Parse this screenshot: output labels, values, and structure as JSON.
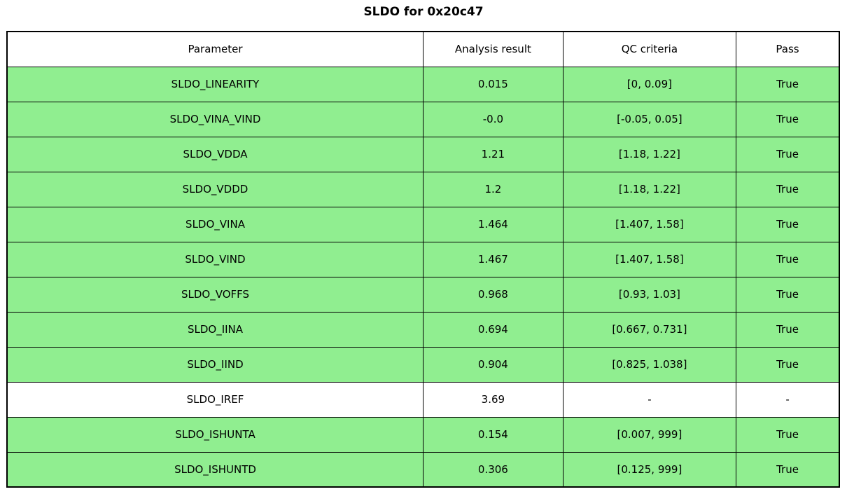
{
  "chart_data": {
    "type": "table",
    "title": "SLDO for 0x20c47",
    "columns": [
      "Parameter",
      "Analysis result",
      "QC criteria",
      "Pass"
    ],
    "rows": [
      {
        "parameter": "SLDO_LINEARITY",
        "result": "0.015",
        "criteria": "[0, 0.09]",
        "pass": "True",
        "passed": true
      },
      {
        "parameter": "SLDO_VINA_VIND",
        "result": "-0.0",
        "criteria": "[-0.05, 0.05]",
        "pass": "True",
        "passed": true
      },
      {
        "parameter": "SLDO_VDDA",
        "result": "1.21",
        "criteria": "[1.18, 1.22]",
        "pass": "True",
        "passed": true
      },
      {
        "parameter": "SLDO_VDDD",
        "result": "1.2",
        "criteria": "[1.18, 1.22]",
        "pass": "True",
        "passed": true
      },
      {
        "parameter": "SLDO_VINA",
        "result": "1.464",
        "criteria": "[1.407, 1.58]",
        "pass": "True",
        "passed": true
      },
      {
        "parameter": "SLDO_VIND",
        "result": "1.467",
        "criteria": "[1.407, 1.58]",
        "pass": "True",
        "passed": true
      },
      {
        "parameter": "SLDO_VOFFS",
        "result": "0.968",
        "criteria": "[0.93, 1.03]",
        "pass": "True",
        "passed": true
      },
      {
        "parameter": "SLDO_IINA",
        "result": "0.694",
        "criteria": "[0.667, 0.731]",
        "pass": "True",
        "passed": true
      },
      {
        "parameter": "SLDO_IIND",
        "result": "0.904",
        "criteria": "[0.825, 1.038]",
        "pass": "True",
        "passed": true
      },
      {
        "parameter": "SLDO_IREF",
        "result": "3.69",
        "criteria": "-",
        "pass": "-",
        "passed": false
      },
      {
        "parameter": "SLDO_ISHUNTA",
        "result": "0.154",
        "criteria": "[0.007, 999]",
        "pass": "True",
        "passed": true
      },
      {
        "parameter": "SLDO_ISHUNTD",
        "result": "0.306",
        "criteria": "[0.125, 999]",
        "pass": "True",
        "passed": true
      }
    ],
    "layout": {
      "grid": true,
      "legend": "none"
    }
  },
  "colors": {
    "pass_row_bg": "#90EE90",
    "neutral_row_bg": "#FFFFFF",
    "border": "#000000",
    "text": "#000000",
    "background": "#FFFFFF"
  }
}
